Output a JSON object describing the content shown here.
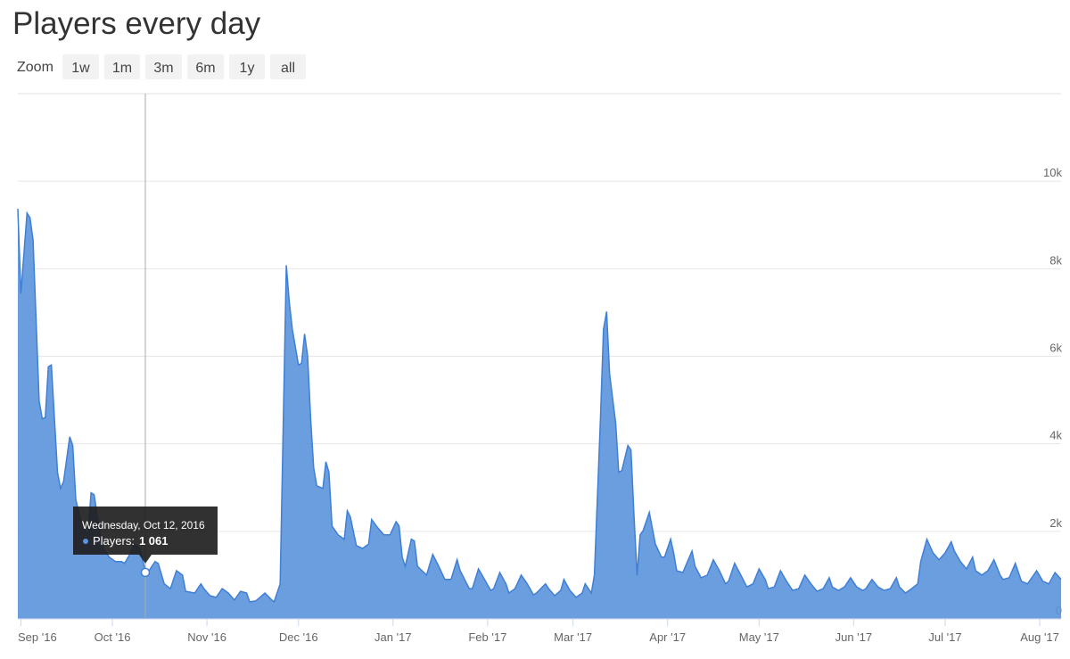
{
  "chart_data": {
    "type": "area",
    "title": "Players every day",
    "zoom": {
      "label": "Zoom",
      "buttons": [
        "1w",
        "1m",
        "3m",
        "6m",
        "1y",
        "all"
      ]
    },
    "color": "#5b93dc",
    "x": [
      "2016-08-31",
      "2016-09-01",
      "2016-09-03",
      "2016-09-04",
      "2016-09-05",
      "2016-09-07",
      "2016-09-08",
      "2016-09-09",
      "2016-09-10",
      "2016-09-11",
      "2016-09-13",
      "2016-09-14",
      "2016-09-15",
      "2016-09-17",
      "2016-09-18",
      "2016-09-19",
      "2016-09-21",
      "2016-09-23",
      "2016-09-24",
      "2016-09-25",
      "2016-09-27",
      "2016-09-28",
      "2016-09-30",
      "2016-10-02",
      "2016-10-04",
      "2016-10-05",
      "2016-10-07",
      "2016-10-08",
      "2016-10-10",
      "2016-10-11",
      "2016-10-12",
      "2016-10-13",
      "2016-10-15",
      "2016-10-16",
      "2016-10-18",
      "2016-10-20",
      "2016-10-22",
      "2016-10-24",
      "2016-10-25",
      "2016-10-28",
      "2016-10-30",
      "2016-10-31",
      "2016-11-02",
      "2016-11-04",
      "2016-11-06",
      "2016-11-08",
      "2016-11-10",
      "2016-11-12",
      "2016-11-14",
      "2016-11-15",
      "2016-11-17",
      "2016-11-20",
      "2016-11-22",
      "2016-11-23",
      "2016-11-25",
      "2016-11-27",
      "2016-11-28",
      "2016-11-29",
      "2016-12-01",
      "2016-12-02",
      "2016-12-03",
      "2016-12-04",
      "2016-12-05",
      "2016-12-06",
      "2016-12-07",
      "2016-12-09",
      "2016-12-10",
      "2016-12-11",
      "2016-12-12",
      "2016-12-14",
      "2016-12-16",
      "2016-12-17",
      "2016-12-18",
      "2016-12-20",
      "2016-12-22",
      "2016-12-24",
      "2016-12-25",
      "2016-12-27",
      "2016-12-29",
      "2016-12-31",
      "2017-01-02",
      "2017-01-03",
      "2017-01-04",
      "2017-01-05",
      "2017-01-07",
      "2017-01-08",
      "2017-01-09",
      "2017-01-12",
      "2017-01-14",
      "2017-01-16",
      "2017-01-18",
      "2017-01-20",
      "2017-01-22",
      "2017-01-23",
      "2017-01-26",
      "2017-01-27",
      "2017-01-29",
      "2017-01-31",
      "2017-02-02",
      "2017-02-03",
      "2017-02-05",
      "2017-02-07",
      "2017-02-08",
      "2017-02-10",
      "2017-02-12",
      "2017-02-14",
      "2017-02-16",
      "2017-02-17",
      "2017-02-20",
      "2017-02-21",
      "2017-02-23",
      "2017-02-25",
      "2017-02-26",
      "2017-02-28",
      "2017-03-02",
      "2017-03-04",
      "2017-03-05",
      "2017-03-07",
      "2017-03-08",
      "2017-03-10",
      "2017-03-11",
      "2017-03-12",
      "2017-03-13",
      "2017-03-15",
      "2017-03-16",
      "2017-03-17",
      "2017-03-19",
      "2017-03-20",
      "2017-03-21",
      "2017-03-22",
      "2017-03-23",
      "2017-03-24",
      "2017-03-26",
      "2017-03-28",
      "2017-03-30",
      "2017-03-31",
      "2017-04-02",
      "2017-04-03",
      "2017-04-04",
      "2017-04-06",
      "2017-04-09",
      "2017-04-10",
      "2017-04-12",
      "2017-04-14",
      "2017-04-16",
      "2017-04-18",
      "2017-04-20",
      "2017-04-21",
      "2017-04-23",
      "2017-04-25",
      "2017-04-27",
      "2017-04-29",
      "2017-05-01",
      "2017-05-03",
      "2017-05-04",
      "2017-05-06",
      "2017-05-08",
      "2017-05-10",
      "2017-05-12",
      "2017-05-14",
      "2017-05-16",
      "2017-05-18",
      "2017-05-20",
      "2017-05-22",
      "2017-05-24",
      "2017-05-25",
      "2017-05-27",
      "2017-05-29",
      "2017-05-31",
      "2017-06-02",
      "2017-06-04",
      "2017-06-05",
      "2017-06-07",
      "2017-06-09",
      "2017-06-11",
      "2017-06-13",
      "2017-06-15",
      "2017-06-16",
      "2017-06-18",
      "2017-06-20",
      "2017-06-22",
      "2017-06-23",
      "2017-06-25",
      "2017-06-27",
      "2017-06-29",
      "2017-07-01",
      "2017-07-03",
      "2017-07-04",
      "2017-07-06",
      "2017-07-08",
      "2017-07-10",
      "2017-07-11",
      "2017-07-13",
      "2017-07-15",
      "2017-07-17",
      "2017-07-19",
      "2017-07-20",
      "2017-07-22",
      "2017-07-24",
      "2017-07-26",
      "2017-07-28",
      "2017-07-29",
      "2017-07-31",
      "2017-08-02",
      "2017-08-04",
      "2017-08-06",
      "2017-08-08"
    ],
    "values": [
      9370,
      7430,
      9270,
      9160,
      8650,
      4980,
      4570,
      4600,
      5760,
      5800,
      3350,
      2980,
      3140,
      4160,
      3960,
      2730,
      2120,
      1920,
      2880,
      2840,
      1920,
      1610,
      1410,
      1310,
      1310,
      1270,
      1510,
      1710,
      1610,
      1310,
      1061,
      1100,
      1310,
      1270,
      800,
      690,
      1100,
      1000,
      630,
      590,
      800,
      690,
      530,
      490,
      690,
      590,
      430,
      630,
      590,
      390,
      410,
      590,
      450,
      390,
      800,
      8080,
      7220,
      6610,
      5800,
      5840,
      6510,
      6000,
      4570,
      3450,
      3040,
      2980,
      3590,
      3350,
      2120,
      1920,
      1820,
      2470,
      2330,
      1670,
      1610,
      1710,
      2270,
      2080,
      1920,
      1920,
      2220,
      2120,
      1410,
      1200,
      1820,
      1780,
      1200,
      1000,
      1470,
      1200,
      900,
      900,
      1350,
      1100,
      690,
      690,
      1140,
      900,
      650,
      690,
      1060,
      800,
      590,
      690,
      1000,
      800,
      550,
      590,
      800,
      690,
      530,
      650,
      900,
      650,
      490,
      590,
      800,
      590,
      1000,
      4570,
      6610,
      7020,
      5590,
      4470,
      3350,
      3390,
      3960,
      3860,
      2330,
      1000,
      1920,
      2020,
      2430,
      1710,
      1410,
      1410,
      1820,
      1510,
      1100,
      1060,
      1550,
      1200,
      940,
      1000,
      1350,
      1100,
      800,
      860,
      1270,
      1000,
      730,
      800,
      1140,
      900,
      690,
      730,
      1100,
      860,
      650,
      690,
      1000,
      800,
      630,
      690,
      940,
      730,
      650,
      730,
      940,
      730,
      650,
      690,
      900,
      730,
      650,
      690,
      940,
      730,
      590,
      690,
      800,
      1310,
      1820,
      1510,
      1350,
      1510,
      1760,
      1550,
      1310,
      1140,
      1410,
      1100,
      1000,
      1100,
      1350,
      1000,
      900,
      940,
      1270,
      860,
      800,
      900,
      1100,
      860,
      800,
      1060,
      900
    ],
    "xlim": [
      "2016-08-31",
      "2017-08-08"
    ],
    "xticks": [
      {
        "value": "2016-09-01",
        "label": "Sep '16"
      },
      {
        "value": "2016-10-01",
        "label": "Oct '16"
      },
      {
        "value": "2016-11-01",
        "label": "Nov '16"
      },
      {
        "value": "2016-12-01",
        "label": "Dec '16"
      },
      {
        "value": "2017-01-01",
        "label": "Jan '17"
      },
      {
        "value": "2017-02-01",
        "label": "Feb '17"
      },
      {
        "value": "2017-03-01",
        "label": "Mar '17"
      },
      {
        "value": "2017-04-01",
        "label": "Apr '17"
      },
      {
        "value": "2017-05-01",
        "label": "May '17"
      },
      {
        "value": "2017-06-01",
        "label": "Jun '17"
      },
      {
        "value": "2017-07-01",
        "label": "Jul '17"
      },
      {
        "value": "2017-08-01",
        "label": "Aug '17"
      }
    ],
    "ylim": [
      0,
      12000
    ],
    "yticks": [
      0,
      {
        "value": 2000,
        "label": "2k"
      },
      {
        "value": 4000,
        "label": "4k"
      },
      {
        "value": 6000,
        "label": "6k"
      },
      {
        "value": 8000,
        "label": "8k"
      },
      {
        "value": 10000,
        "label": "10k"
      }
    ],
    "grid": true,
    "tooltip": {
      "date": "Wednesday, Oct 12, 2016",
      "label": "Players:",
      "value": 1061,
      "value_label": "1 061"
    }
  }
}
